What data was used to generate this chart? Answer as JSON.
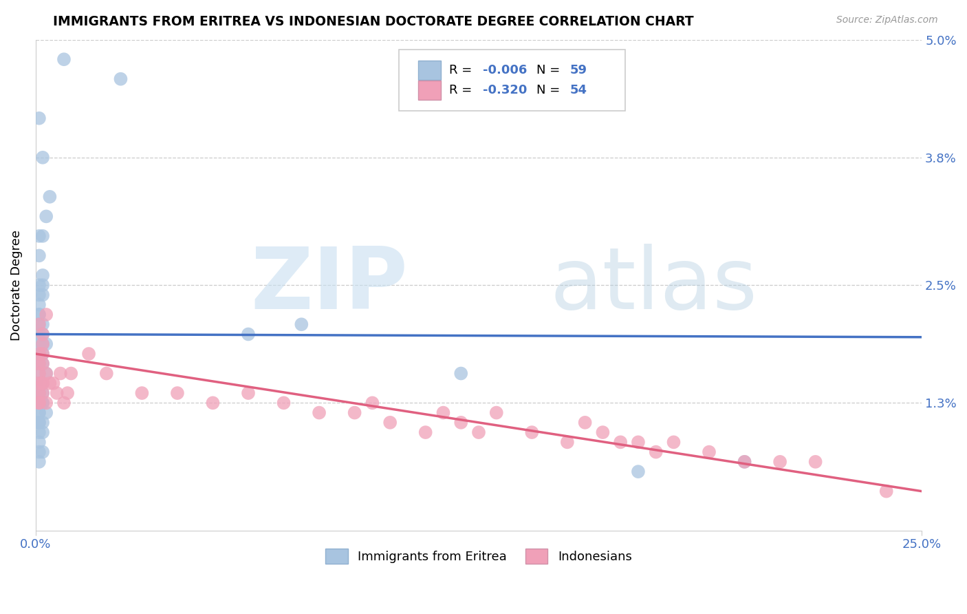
{
  "title": "IMMIGRANTS FROM ERITREA VS INDONESIAN DOCTORATE DEGREE CORRELATION CHART",
  "source": "Source: ZipAtlas.com",
  "ylabel": "Doctorate Degree",
  "xlim": [
    0.0,
    0.25
  ],
  "ylim": [
    0.0,
    0.05
  ],
  "xtick_positions": [
    0.0,
    0.25
  ],
  "xtick_labels": [
    "0.0%",
    "25.0%"
  ],
  "ytick_positions": [
    0.0,
    0.013,
    0.025,
    0.038,
    0.05
  ],
  "ytick_labels": [
    "",
    "1.3%",
    "2.5%",
    "3.8%",
    "5.0%"
  ],
  "blue_R": -0.006,
  "blue_N": 59,
  "pink_R": -0.32,
  "pink_N": 54,
  "blue_color": "#a8c4e0",
  "pink_color": "#f0a0b8",
  "blue_line_color": "#4472c4",
  "pink_line_color": "#e06080",
  "legend_label_blue": "Immigrants from Eritrea",
  "legend_label_pink": "Indonesians",
  "grid_color": "#cccccc",
  "blue_line_start_y": 0.02,
  "blue_line_end_y": 0.0197,
  "pink_line_start_y": 0.018,
  "pink_line_end_y": 0.004,
  "blue_x": [
    0.008,
    0.024,
    0.001,
    0.002,
    0.004,
    0.002,
    0.003,
    0.001,
    0.001,
    0.002,
    0.002,
    0.001,
    0.001,
    0.002,
    0.001,
    0.001,
    0.001,
    0.002,
    0.001,
    0.002,
    0.001,
    0.001,
    0.002,
    0.003,
    0.001,
    0.002,
    0.001,
    0.001,
    0.002,
    0.001,
    0.003,
    0.001,
    0.001,
    0.002,
    0.001,
    0.001,
    0.002,
    0.001,
    0.001,
    0.002,
    0.001,
    0.002,
    0.001,
    0.001,
    0.003,
    0.001,
    0.002,
    0.001,
    0.001,
    0.002,
    0.001,
    0.001,
    0.002,
    0.001,
    0.06,
    0.075,
    0.12,
    0.17,
    0.2
  ],
  "blue_y": [
    0.048,
    0.046,
    0.042,
    0.038,
    0.034,
    0.03,
    0.032,
    0.03,
    0.028,
    0.026,
    0.025,
    0.025,
    0.024,
    0.024,
    0.023,
    0.022,
    0.022,
    0.021,
    0.021,
    0.02,
    0.02,
    0.019,
    0.019,
    0.019,
    0.018,
    0.018,
    0.018,
    0.017,
    0.017,
    0.017,
    0.016,
    0.016,
    0.015,
    0.015,
    0.015,
    0.014,
    0.014,
    0.014,
    0.013,
    0.013,
    0.013,
    0.013,
    0.012,
    0.012,
    0.012,
    0.011,
    0.011,
    0.011,
    0.01,
    0.01,
    0.009,
    0.008,
    0.008,
    0.007,
    0.02,
    0.021,
    0.016,
    0.006,
    0.007
  ],
  "pink_x": [
    0.001,
    0.002,
    0.001,
    0.001,
    0.002,
    0.001,
    0.002,
    0.002,
    0.003,
    0.001,
    0.002,
    0.001,
    0.001,
    0.002,
    0.003,
    0.001,
    0.002,
    0.003,
    0.004,
    0.005,
    0.006,
    0.007,
    0.008,
    0.009,
    0.01,
    0.015,
    0.02,
    0.03,
    0.04,
    0.05,
    0.06,
    0.07,
    0.08,
    0.09,
    0.095,
    0.1,
    0.11,
    0.115,
    0.12,
    0.125,
    0.13,
    0.14,
    0.15,
    0.155,
    0.16,
    0.165,
    0.17,
    0.175,
    0.18,
    0.19,
    0.2,
    0.21,
    0.22,
    0.24
  ],
  "pink_y": [
    0.021,
    0.02,
    0.018,
    0.017,
    0.018,
    0.016,
    0.019,
    0.017,
    0.022,
    0.015,
    0.014,
    0.014,
    0.013,
    0.015,
    0.016,
    0.013,
    0.015,
    0.013,
    0.015,
    0.015,
    0.014,
    0.016,
    0.013,
    0.014,
    0.016,
    0.018,
    0.016,
    0.014,
    0.014,
    0.013,
    0.014,
    0.013,
    0.012,
    0.012,
    0.013,
    0.011,
    0.01,
    0.012,
    0.011,
    0.01,
    0.012,
    0.01,
    0.009,
    0.011,
    0.01,
    0.009,
    0.009,
    0.008,
    0.009,
    0.008,
    0.007,
    0.007,
    0.007,
    0.004
  ]
}
